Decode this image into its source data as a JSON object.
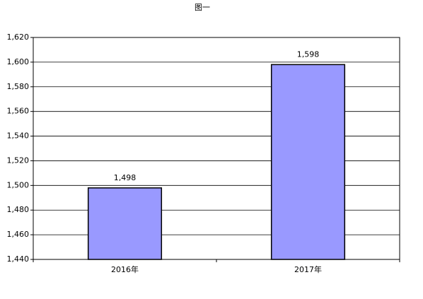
{
  "chart_data": {
    "type": "bar",
    "title": "图一",
    "categories": [
      "2016年",
      "2017年"
    ],
    "values": [
      1498,
      1598
    ],
    "value_labels": [
      "1,498",
      "1,598"
    ],
    "color": "#9999ff",
    "ylim": [
      1440,
      1620
    ],
    "yticks": [
      {
        "value": 1440,
        "label": "1,440"
      },
      {
        "value": 1460,
        "label": "1,460"
      },
      {
        "value": 1480,
        "label": "1,480"
      },
      {
        "value": 1500,
        "label": "1,500"
      },
      {
        "value": 1520,
        "label": "1,520"
      },
      {
        "value": 1540,
        "label": "1,540"
      },
      {
        "value": 1560,
        "label": "1,560"
      },
      {
        "value": 1580,
        "label": "1,580"
      },
      {
        "value": 1600,
        "label": "1,600"
      },
      {
        "value": 1620,
        "label": "1,620"
      }
    ],
    "grid": true
  }
}
